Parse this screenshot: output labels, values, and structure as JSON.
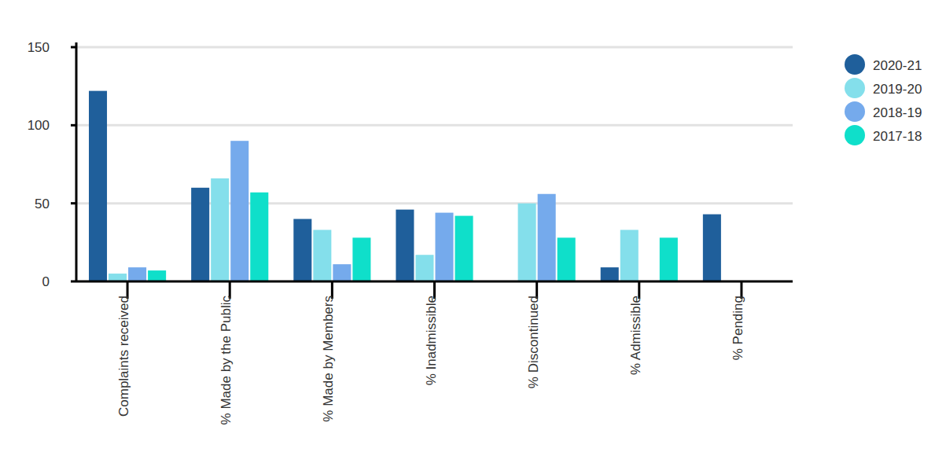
{
  "chart_data": {
    "type": "bar",
    "categories": [
      "Complaints received",
      "% Made by the Public",
      "% Made by Members",
      "% Inadmissible",
      "% Discontinued",
      "% Admissible",
      "% Pending"
    ],
    "series": [
      {
        "name": "2020-21",
        "color": "#1f5f9b",
        "values": [
          122,
          60,
          40,
          46,
          0,
          9,
          43
        ]
      },
      {
        "name": "2019-20",
        "color": "#84dfeb",
        "values": [
          5,
          66,
          33,
          17,
          50,
          33,
          0
        ]
      },
      {
        "name": "2018-19",
        "color": "#75aaec",
        "values": [
          9,
          90,
          11,
          44,
          56,
          0,
          0
        ]
      },
      {
        "name": "2017-18",
        "color": "#0fdfca",
        "values": [
          7,
          57,
          28,
          42,
          28,
          28,
          0
        ]
      }
    ],
    "ylim": [
      0,
      150
    ],
    "yticks": [
      0,
      50,
      100,
      150
    ],
    "grid": true,
    "legend": "right"
  }
}
